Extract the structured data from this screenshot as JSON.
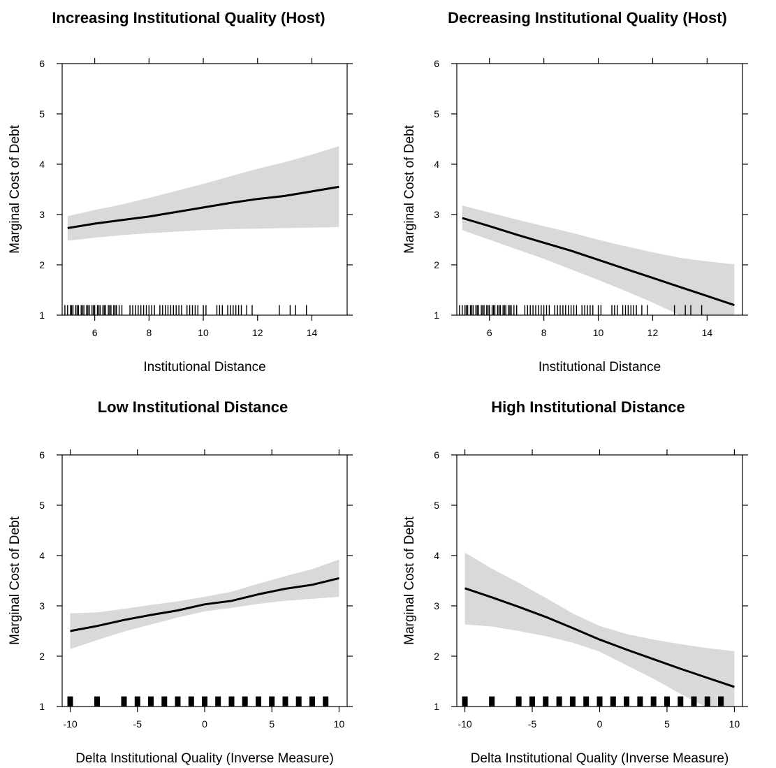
{
  "chart_data": [
    {
      "type": "line",
      "title": "Increasing Institutional Quality (Host)",
      "xlabel": "Institutional Distance",
      "ylabel": "Marginal Cost of Debt",
      "xlim": [
        4.8,
        15.3
      ],
      "ylim": [
        1,
        6
      ],
      "xticks": [
        6,
        8,
        10,
        12,
        14
      ],
      "yticks": [
        1,
        2,
        3,
        4,
        5,
        6
      ],
      "series": [
        {
          "x": [
            5,
            6,
            7,
            8,
            9,
            10,
            11,
            12,
            13,
            14,
            15
          ],
          "values": [
            2.73,
            2.82,
            2.89,
            2.96,
            3.05,
            3.14,
            3.23,
            3.31,
            3.37,
            3.46,
            3.55
          ],
          "lower": [
            2.48,
            2.54,
            2.59,
            2.63,
            2.66,
            2.69,
            2.71,
            2.72,
            2.73,
            2.74,
            2.75
          ],
          "upper": [
            2.97,
            3.09,
            3.2,
            3.33,
            3.47,
            3.61,
            3.76,
            3.91,
            4.04,
            4.19,
            4.36
          ]
        }
      ],
      "rug": [
        4.9,
        5.0,
        5.1,
        5.15,
        5.2,
        5.3,
        5.35,
        5.4,
        5.5,
        5.55,
        5.6,
        5.7,
        5.75,
        5.8,
        5.9,
        5.95,
        6.0,
        6.1,
        6.15,
        6.2,
        6.3,
        6.35,
        6.4,
        6.5,
        6.55,
        6.6,
        6.7,
        6.75,
        6.8,
        6.9,
        7.0,
        7.3,
        7.4,
        7.5,
        7.6,
        7.7,
        7.8,
        7.9,
        8.0,
        8.1,
        8.2,
        8.4,
        8.5,
        8.6,
        8.7,
        8.8,
        8.9,
        9.0,
        9.1,
        9.2,
        9.4,
        9.5,
        9.6,
        9.7,
        9.8,
        10.0,
        10.1,
        10.5,
        10.6,
        10.7,
        10.9,
        11.0,
        11.1,
        11.2,
        11.3,
        11.4,
        11.6,
        11.8,
        12.8,
        13.2,
        13.4,
        13.8
      ]
    },
    {
      "type": "line",
      "title": "Decreasing Institutional Quality (Host)",
      "xlabel": "Institutional Distance",
      "ylabel": "Marginal Cost of Debt",
      "xlim": [
        4.8,
        15.3
      ],
      "ylim": [
        1,
        6
      ],
      "xticks": [
        6,
        8,
        10,
        12,
        14
      ],
      "yticks": [
        1,
        2,
        3,
        4,
        5,
        6
      ],
      "series": [
        {
          "x": [
            5,
            6,
            7,
            8,
            9,
            10,
            11,
            12,
            13,
            14,
            15
          ],
          "values": [
            2.93,
            2.77,
            2.6,
            2.44,
            2.28,
            2.1,
            1.92,
            1.74,
            1.56,
            1.38,
            1.2
          ],
          "lower": [
            2.69,
            2.5,
            2.31,
            2.12,
            1.91,
            1.7,
            1.48,
            1.25,
            1.0,
            0.75,
            0.5
          ],
          "upper": [
            3.18,
            3.04,
            2.9,
            2.77,
            2.64,
            2.5,
            2.37,
            2.25,
            2.14,
            2.07,
            2.01
          ]
        }
      ],
      "rug": [
        4.9,
        5.0,
        5.1,
        5.15,
        5.2,
        5.3,
        5.35,
        5.4,
        5.5,
        5.55,
        5.6,
        5.7,
        5.75,
        5.8,
        5.9,
        5.95,
        6.0,
        6.1,
        6.15,
        6.2,
        6.3,
        6.35,
        6.4,
        6.5,
        6.55,
        6.6,
        6.7,
        6.75,
        6.8,
        6.9,
        7.0,
        7.3,
        7.4,
        7.5,
        7.6,
        7.7,
        7.8,
        7.9,
        8.0,
        8.1,
        8.2,
        8.4,
        8.5,
        8.6,
        8.7,
        8.8,
        8.9,
        9.0,
        9.1,
        9.2,
        9.4,
        9.5,
        9.6,
        9.7,
        9.8,
        10.0,
        10.1,
        10.5,
        10.6,
        10.7,
        10.9,
        11.0,
        11.1,
        11.2,
        11.3,
        11.4,
        11.6,
        11.8,
        12.8,
        13.2,
        13.4,
        13.8
      ]
    },
    {
      "type": "line",
      "title": "Low Institutional Distance",
      "xlabel": "Delta Institutional Quality (Inverse Measure)",
      "ylabel": "Marginal Cost of Debt",
      "xlim": [
        -10.6,
        10.6
      ],
      "ylim": [
        1,
        6
      ],
      "xticks": [
        -10,
        -5,
        0,
        5,
        10
      ],
      "yticks": [
        1,
        2,
        3,
        4,
        5,
        6
      ],
      "series": [
        {
          "x": [
            -10,
            -8,
            -6,
            -4,
            -2,
            0,
            2,
            4,
            6,
            8,
            10
          ],
          "values": [
            2.5,
            2.6,
            2.72,
            2.82,
            2.91,
            3.03,
            3.1,
            3.23,
            3.34,
            3.42,
            3.55
          ],
          "lower": [
            2.14,
            2.32,
            2.49,
            2.63,
            2.77,
            2.89,
            2.96,
            3.04,
            3.1,
            3.14,
            3.18
          ],
          "upper": [
            2.85,
            2.87,
            2.94,
            3.02,
            3.09,
            3.18,
            3.28,
            3.44,
            3.59,
            3.73,
            3.92
          ]
        }
      ],
      "rug": [
        -10,
        -8,
        -6,
        -5,
        -4,
        -3,
        -2,
        -1,
        0,
        1,
        2,
        3,
        4,
        5,
        6,
        7,
        8,
        9
      ]
    },
    {
      "type": "line",
      "title": "High Institutional Distance",
      "xlabel": "Delta Institutional Quality (Inverse Measure)",
      "ylabel": "Marginal Cost of Debt",
      "xlim": [
        -10.6,
        10.6
      ],
      "ylim": [
        1,
        6
      ],
      "xticks": [
        -10,
        -5,
        0,
        5,
        10
      ],
      "yticks": [
        1,
        2,
        3,
        4,
        5,
        6
      ],
      "series": [
        {
          "x": [
            -10,
            -8,
            -6,
            -4,
            -2,
            0,
            2,
            4,
            6,
            8,
            10
          ],
          "values": [
            3.35,
            3.17,
            2.98,
            2.78,
            2.56,
            2.33,
            2.13,
            1.94,
            1.75,
            1.57,
            1.39
          ],
          "lower": [
            2.63,
            2.59,
            2.5,
            2.4,
            2.27,
            2.09,
            1.82,
            1.55,
            1.25,
            0.97,
            0.7
          ],
          "upper": [
            4.06,
            3.74,
            3.46,
            3.16,
            2.85,
            2.6,
            2.44,
            2.33,
            2.24,
            2.16,
            2.1
          ]
        }
      ],
      "rug": [
        -10,
        -8,
        -6,
        -5,
        -4,
        -3,
        -2,
        -1,
        0,
        1,
        2,
        3,
        4,
        5,
        6,
        7,
        8,
        9
      ]
    }
  ]
}
